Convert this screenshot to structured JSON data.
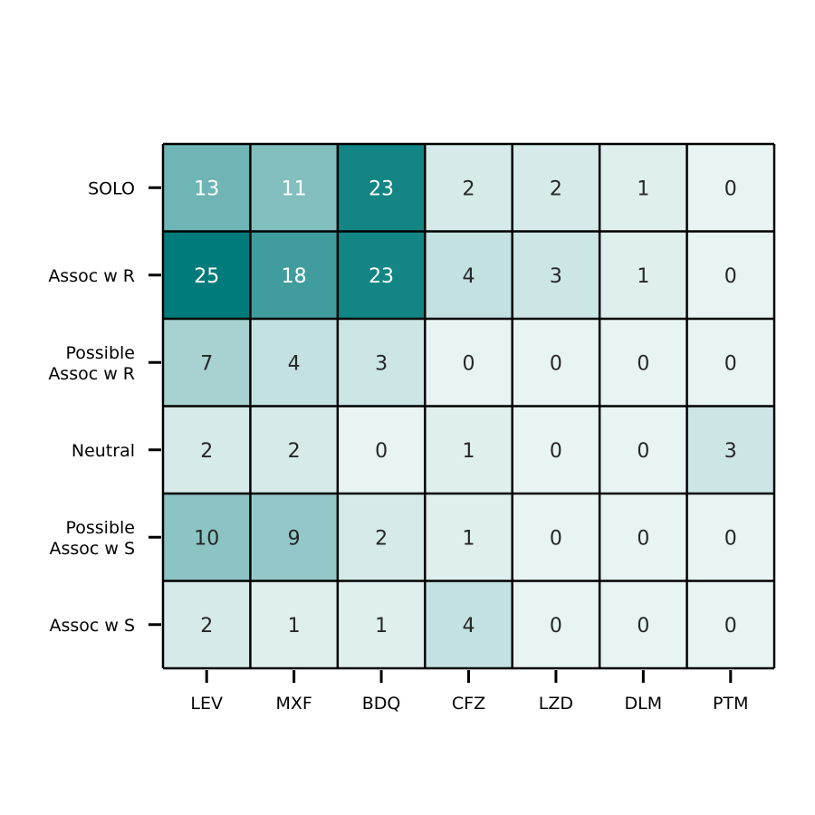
{
  "chart_data": {
    "type": "heatmap",
    "title": "",
    "xlabel": "",
    "ylabel": "",
    "x_categories": [
      "LEV",
      "MXF",
      "BDQ",
      "CFZ",
      "LZD",
      "DLM",
      "PTM"
    ],
    "y_categories": [
      [
        "SOLO"
      ],
      [
        "Assoc w R"
      ],
      [
        "Possible",
        "Assoc w R"
      ],
      [
        "Neutral"
      ],
      [
        "Possible",
        "Assoc w S"
      ],
      [
        "Assoc w S"
      ]
    ],
    "values": [
      [
        13,
        11,
        23,
        2,
        2,
        1,
        0
      ],
      [
        25,
        18,
        23,
        4,
        3,
        1,
        0
      ],
      [
        7,
        4,
        3,
        0,
        0,
        0,
        0
      ],
      [
        2,
        2,
        0,
        1,
        0,
        0,
        3
      ],
      [
        10,
        9,
        2,
        1,
        0,
        0,
        0
      ],
      [
        2,
        1,
        1,
        4,
        0,
        0,
        0
      ]
    ],
    "color_range": [
      0,
      25
    ],
    "colormap": {
      "low": "#e8f4f3",
      "high": "#007b7b",
      "text_dark": "#262626",
      "text_light": "#ffffff",
      "grid": "#000000"
    },
    "grid": true,
    "legend": "none"
  }
}
